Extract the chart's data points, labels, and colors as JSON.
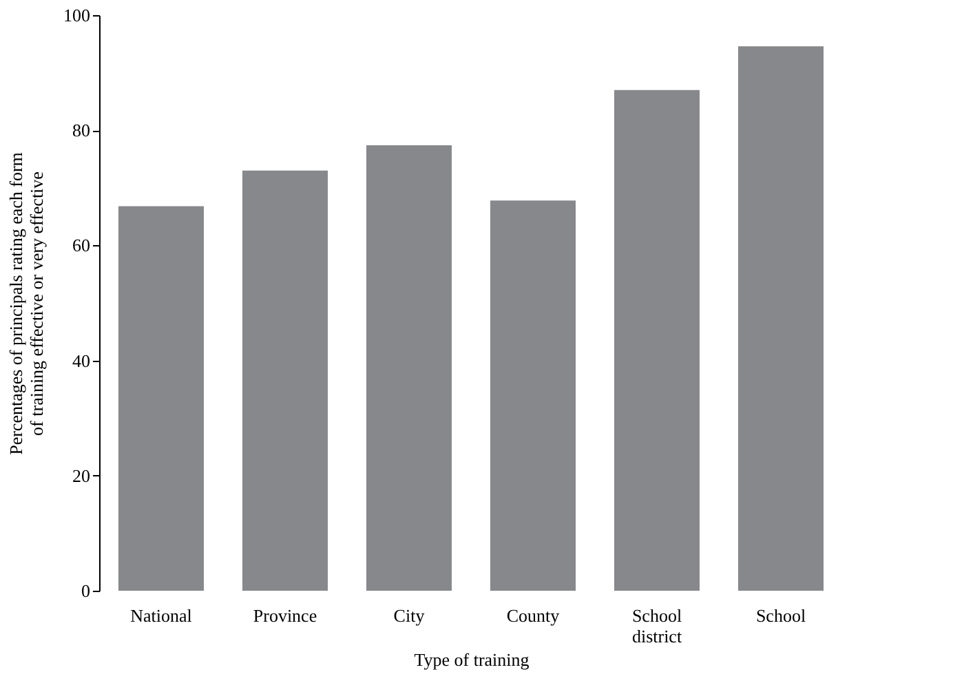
{
  "chart_data": {
    "type": "bar",
    "xlabel": "Type of training",
    "ylabel": "Percentages of principals rating each form of training effective or very effective",
    "categories": [
      "National",
      "Province",
      "City",
      "County",
      "School district",
      "School"
    ],
    "values": [
      66.8,
      73,
      77.4,
      67.8,
      87,
      94.6
    ],
    "color": "#87888c",
    "ylim": [
      0,
      100
    ],
    "yticks": [
      0,
      20,
      40,
      60,
      80,
      100
    ],
    "grid": false
  }
}
